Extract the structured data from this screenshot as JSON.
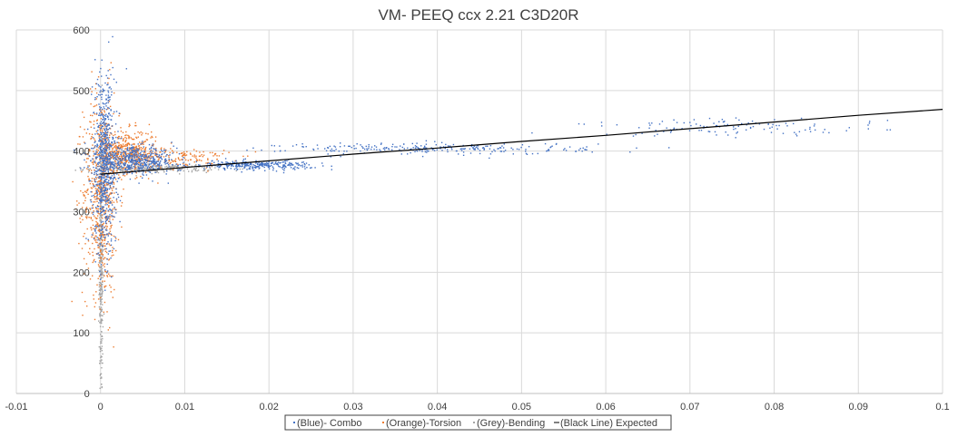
{
  "chart_data": {
    "type": "scatter",
    "title": "VM- PEEQ  ccx 2.21 C3D20R",
    "xlabel": "",
    "ylabel": "",
    "xlim": [
      -0.01,
      0.1
    ],
    "ylim": [
      0,
      600
    ],
    "x_ticks": [
      "-0.01",
      "0",
      "0.01",
      "0.02",
      "0.03",
      "0.04",
      "0.05",
      "0.06",
      "0.07",
      "0.08",
      "0.09",
      "0.1"
    ],
    "y_ticks": [
      "0",
      "100",
      "200",
      "300",
      "400",
      "500",
      "600"
    ],
    "grid": true,
    "legend_position": "bottom",
    "series": [
      {
        "name": "(Blue)- Combo",
        "color": "#4472C4",
        "kind": "scatter",
        "clusters": [
          {
            "x_center": 0.0004,
            "x_spread": 0.0012,
            "y_center": 380,
            "y_spread": 120,
            "n": 700
          },
          {
            "x_center": 0.004,
            "x_spread": 0.004,
            "y_center": 385,
            "y_spread": 18,
            "n": 500
          },
          {
            "x_center": 0.018,
            "x_spread": 0.006,
            "y_center": 378,
            "y_spread": 6,
            "n": 300
          },
          {
            "x_center": 0.04,
            "x_spread": 0.015,
            "y_center": 405,
            "y_spread": 8,
            "n": 260
          },
          {
            "x_center": 0.075,
            "x_spread": 0.015,
            "y_center": 440,
            "y_spread": 12,
            "n": 120
          }
        ]
      },
      {
        "name": "(Orange)-Torsion",
        "color": "#ED7D31",
        "kind": "scatter",
        "clusters": [
          {
            "x_center": 0.0,
            "x_spread": 0.0018,
            "y_center": 330,
            "y_spread": 140,
            "n": 650
          },
          {
            "x_center": 0.003,
            "x_spread": 0.003,
            "y_center": 400,
            "y_spread": 30,
            "n": 450
          },
          {
            "x_center": 0.008,
            "x_spread": 0.006,
            "y_center": 390,
            "y_spread": 14,
            "n": 200
          }
        ]
      },
      {
        "name": "(Grey)-Bending",
        "color": "#A5A5A5",
        "kind": "scatter",
        "clusters": [
          {
            "x_center": 0.0,
            "x_spread": 0.0002,
            "y_center": 220,
            "y_spread": 200,
            "n": 350
          },
          {
            "x_center": 0.006,
            "x_spread": 0.006,
            "y_center": 372,
            "y_spread": 5,
            "n": 300
          }
        ]
      },
      {
        "name": "(Black Line) Expected",
        "color": "#000000",
        "kind": "line",
        "x": [
          0.0,
          0.01,
          0.02,
          0.03,
          0.04,
          0.05,
          0.06,
          0.07,
          0.08,
          0.09,
          0.1
        ],
        "y": [
          362,
          373,
          384,
          395,
          405,
          416,
          426,
          437,
          448,
          459,
          469
        ]
      }
    ]
  }
}
